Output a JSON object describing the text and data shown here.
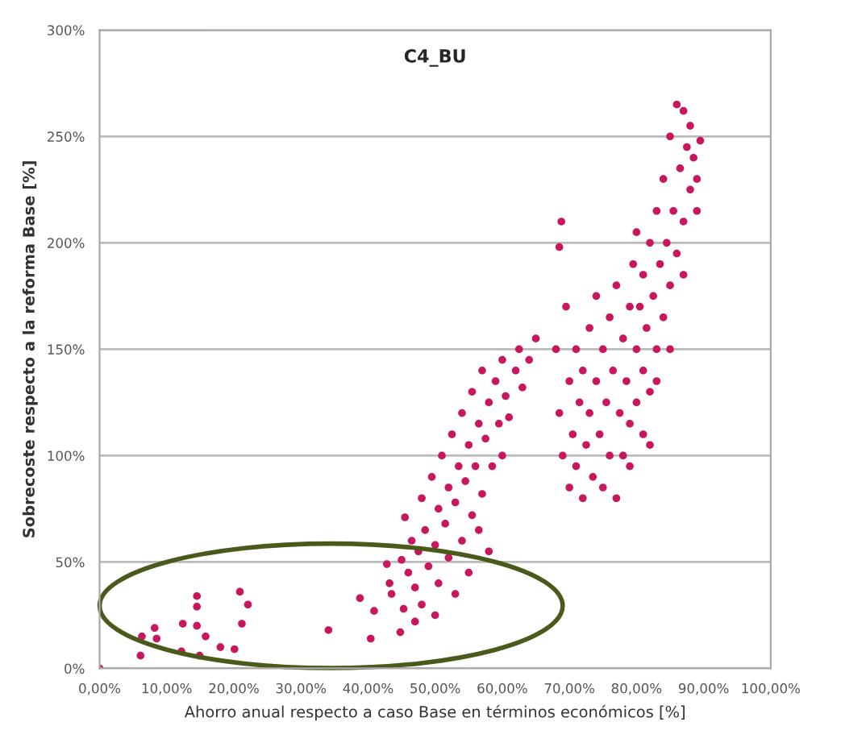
{
  "chart_data": {
    "type": "scatter",
    "title": "C4_BU",
    "xlabel": "Ahorro anual respecto a caso Base en términos económicos [%]",
    "ylabel": "Sobrecoste respecto a la reforma Base [%]",
    "xlim": [
      0,
      100
    ],
    "ylim": [
      0,
      300
    ],
    "xticks": [
      {
        "value": 0,
        "label": "0,00%"
      },
      {
        "value": 10,
        "label": "10,00%"
      },
      {
        "value": 20,
        "label": "20,00%"
      },
      {
        "value": 30,
        "label": "30,00%"
      },
      {
        "value": 40,
        "label": "40,00%"
      },
      {
        "value": 50,
        "label": "50,00%"
      },
      {
        "value": 60,
        "label": "60,00%"
      },
      {
        "value": 70,
        "label": "70,00%"
      },
      {
        "value": 80,
        "label": "80,00%"
      },
      {
        "value": 90,
        "label": "90,00%"
      },
      {
        "value": 100,
        "label": "100,00%"
      }
    ],
    "yticks": [
      {
        "value": 0,
        "label": "0%"
      },
      {
        "value": 50,
        "label": "50%"
      },
      {
        "value": 100,
        "label": "100%"
      },
      {
        "value": 150,
        "label": "150%"
      },
      {
        "value": 200,
        "label": "200%"
      },
      {
        "value": 250,
        "label": "250%"
      },
      {
        "value": 300,
        "label": "300%"
      }
    ],
    "grid": "y",
    "marker": "circle",
    "series": [
      {
        "color": "#c8175d",
        "x": [
          0,
          6.1,
          6.3,
          8.2,
          8.5,
          12.2,
          12.4,
          14.5,
          14.5,
          14.5,
          14.9,
          15.8,
          18,
          20.1,
          20.9,
          21.2,
          22.1,
          34.1,
          38.8,
          40.4,
          40.9,
          42.8,
          43.2,
          43.5,
          44.8,
          45,
          45.3,
          45.5,
          46,
          46.5,
          47,
          47.5,
          48,
          48,
          48.5,
          49,
          49.5,
          50,
          50.5,
          50.5,
          51,
          51.5,
          52,
          52,
          52.5,
          53,
          53.5,
          54,
          54,
          54.5,
          55,
          55.5,
          55.5,
          56,
          56.5,
          57,
          57,
          57.5,
          58,
          58.5,
          59,
          59.5,
          60,
          60,
          60.5,
          61,
          62,
          62.5,
          63,
          64,
          65,
          47,
          50,
          53,
          55,
          58,
          56.5,
          68.5,
          68.8,
          68,
          68.5,
          69,
          69.5,
          70,
          70,
          70.5,
          71,
          71,
          71.5,
          72,
          72,
          72.5,
          73,
          73,
          73.5,
          74,
          74,
          74.5,
          75,
          75,
          75.5,
          76,
          76,
          76.5,
          77,
          77,
          77.5,
          78,
          78,
          78.5,
          79,
          79,
          79.5,
          80,
          80,
          80,
          80.5,
          81,
          81,
          81.5,
          82,
          82,
          82.5,
          83,
          83,
          83.5,
          84,
          84,
          84.5,
          85,
          85,
          85.5,
          86,
          86,
          86.5,
          87,
          87,
          87.5,
          88,
          88,
          88.5,
          89,
          89.5,
          85,
          83,
          81,
          79,
          82,
          87,
          89
        ],
        "values": [
          0,
          6,
          15,
          19,
          14,
          8,
          21,
          34,
          29,
          20,
          6,
          15,
          10,
          9,
          36,
          21,
          30,
          18,
          33,
          14,
          27,
          49,
          40,
          35,
          17,
          51,
          28,
          71,
          45,
          60,
          38,
          55,
          30,
          80,
          65,
          48,
          90,
          58,
          75,
          40,
          100,
          68,
          85,
          52,
          110,
          78,
          95,
          60,
          120,
          88,
          105,
          72,
          130,
          95,
          115,
          82,
          140,
          108,
          125,
          95,
          135,
          115,
          145,
          100,
          128,
          118,
          140,
          150,
          132,
          145,
          155,
          22,
          25,
          35,
          45,
          55,
          65,
          198,
          210,
          150,
          120,
          100,
          170,
          135,
          85,
          110,
          150,
          95,
          125,
          80,
          140,
          105,
          160,
          120,
          90,
          135,
          175,
          110,
          150,
          85,
          125,
          165,
          100,
          140,
          80,
          180,
          120,
          155,
          100,
          135,
          170,
          115,
          190,
          150,
          125,
          205,
          170,
          140,
          185,
          160,
          200,
          130,
          175,
          150,
          215,
          190,
          165,
          230,
          200,
          180,
          250,
          215,
          265,
          195,
          235,
          210,
          262,
          245,
          225,
          255,
          240,
          230,
          248,
          150,
          135,
          110,
          95,
          105,
          185,
          215
        ]
      }
    ]
  }
}
